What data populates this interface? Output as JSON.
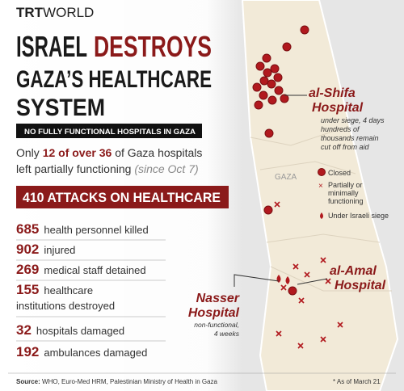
{
  "logo": {
    "bold": "TRT",
    "light": "WORLD"
  },
  "title": {
    "line1_a": "ISRAEL",
    "line1_b": "DESTROYS",
    "line2": "GAZA’S HEALTHCARE",
    "line3": "SYSTEM"
  },
  "banner": "NO FULLY FUNCTIONAL HOSPITALS IN GAZA",
  "summary": {
    "start": "Only",
    "highlight": "12 of over 36",
    "rest": "of Gaza hospitals",
    "line2": "left partially functioning",
    "note": "(since Oct 7)"
  },
  "headline": "410 ATTACKS ON HEALTHCARE",
  "stats": [
    {
      "value": 685,
      "lines": [
        "health personnel killed"
      ]
    },
    {
      "value": 902,
      "lines": [
        "injured"
      ]
    },
    {
      "value": 269,
      "lines": [
        "medical staff detained"
      ]
    },
    {
      "value": 155,
      "lines": [
        "healthcare",
        "institutions destroyed"
      ]
    },
    {
      "value": 32,
      "lines": [
        "hospitals damaged"
      ]
    },
    {
      "value": 192,
      "lines": [
        "ambulances damaged"
      ]
    }
  ],
  "source": {
    "label": "Source:",
    "text": "WHO, Euro-Med HRM, Palestinian Ministry of Health in Gaza",
    "note": "* As of March 21"
  },
  "map": {
    "region": "GAZA",
    "shifa": {
      "name": [
        "al-Shifa",
        "Hospital"
      ],
      "note": [
        "under siege, 4 days",
        "hundreds of",
        "thousands remain",
        "cut off from aid"
      ]
    },
    "amal": {
      "name": [
        "al-Amal",
        "Hospital"
      ]
    },
    "nasser": {
      "name": [
        "Nasser",
        "Hospital"
      ],
      "note": [
        "non-functional,",
        "4 weeks"
      ]
    },
    "legend": {
      "closed": "Closed",
      "partial": [
        "Partially or",
        "minimally",
        "functioning"
      ],
      "siege": "Under Israeli siege"
    }
  }
}
